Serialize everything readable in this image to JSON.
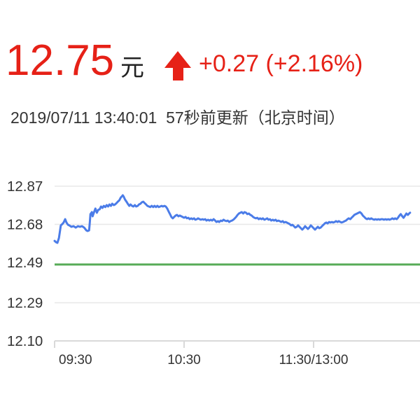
{
  "header": {
    "price": "12.75",
    "currency_label": "元",
    "change_text": "+0.27 (+2.16%)",
    "change_direction": "up",
    "arrow_icon": "up-arrow",
    "update_line": "2019/07/11 13:40:01  57秒前更新（北京时间）"
  },
  "colors": {
    "accent_red": "#e62117",
    "line_blue": "#4b7ce8",
    "prev_close_green": "#57ab57",
    "gridline_gray": "#e8e8e8",
    "axis_gray": "#d9d9d9",
    "text_dark": "#333333"
  },
  "chart_data": {
    "type": "line",
    "title": "",
    "xlabel": "",
    "ylabel": "",
    "grid": true,
    "legend_position": "none",
    "ylim": [
      12.1,
      12.87
    ],
    "y_ticks": [
      {
        "label": "12.87",
        "value": 12.87
      },
      {
        "label": "12.68",
        "value": 12.68
      },
      {
        "label": "12.49",
        "value": 12.49
      },
      {
        "label": "12.29",
        "value": 12.29
      },
      {
        "label": "12.10",
        "value": 12.1
      }
    ],
    "x_ticks": [
      {
        "label": "09:30",
        "minute": 0
      },
      {
        "label": "10:30",
        "minute": 60
      },
      {
        "label": "11:30/13:00",
        "minute": 120
      }
    ],
    "x_axis_note": "minutes of trading time since 09:30 (lunch break 11:30-13:00 collapsed)",
    "prev_close_value": 12.48,
    "series": [
      {
        "name": "intraday-price",
        "points": [
          [
            0,
            12.598
          ],
          [
            0.7,
            12.591
          ],
          [
            1.3,
            12.588
          ],
          [
            2,
            12.612
          ],
          [
            2.6,
            12.654
          ],
          [
            2.9,
            12.675
          ],
          [
            3.6,
            12.682
          ],
          [
            4.2,
            12.689
          ],
          [
            4.9,
            12.706
          ],
          [
            5.5,
            12.689
          ],
          [
            6.2,
            12.678
          ],
          [
            6.8,
            12.675
          ],
          [
            7.8,
            12.668
          ],
          [
            8.8,
            12.671
          ],
          [
            9.8,
            12.664
          ],
          [
            10.8,
            12.671
          ],
          [
            11.7,
            12.668
          ],
          [
            12.7,
            12.671
          ],
          [
            13.7,
            12.664
          ],
          [
            14.7,
            12.65
          ],
          [
            15.3,
            12.647
          ],
          [
            16,
            12.65
          ],
          [
            16.3,
            12.689
          ],
          [
            16.6,
            12.731
          ],
          [
            17.3,
            12.741
          ],
          [
            17.6,
            12.72
          ],
          [
            18.3,
            12.741
          ],
          [
            18.9,
            12.759
          ],
          [
            19.6,
            12.738
          ],
          [
            20.2,
            12.752
          ],
          [
            20.9,
            12.755
          ],
          [
            21.5,
            12.769
          ],
          [
            22.2,
            12.762
          ],
          [
            22.8,
            12.772
          ],
          [
            23.5,
            12.766
          ],
          [
            24.1,
            12.776
          ],
          [
            24.8,
            12.769
          ],
          [
            25.4,
            12.779
          ],
          [
            26.1,
            12.772
          ],
          [
            26.7,
            12.783
          ],
          [
            27.4,
            12.776
          ],
          [
            28,
            12.779
          ],
          [
            28.7,
            12.786
          ],
          [
            29.3,
            12.793
          ],
          [
            30,
            12.8
          ],
          [
            30.7,
            12.814
          ],
          [
            31.3,
            12.821
          ],
          [
            31.6,
            12.825
          ],
          [
            32,
            12.818
          ],
          [
            32.6,
            12.804
          ],
          [
            33.3,
            12.793
          ],
          [
            33.9,
            12.783
          ],
          [
            34.6,
            12.772
          ],
          [
            35.2,
            12.779
          ],
          [
            35.9,
            12.772
          ],
          [
            36.5,
            12.769
          ],
          [
            37.2,
            12.776
          ],
          [
            37.8,
            12.769
          ],
          [
            38.5,
            12.772
          ],
          [
            39.1,
            12.779
          ],
          [
            39.8,
            12.783
          ],
          [
            40.4,
            12.79
          ],
          [
            41.1,
            12.793
          ],
          [
            41.7,
            12.786
          ],
          [
            42.4,
            12.779
          ],
          [
            43,
            12.772
          ],
          [
            43.7,
            12.769
          ],
          [
            44.3,
            12.766
          ],
          [
            45,
            12.772
          ],
          [
            45.7,
            12.766
          ],
          [
            46.3,
            12.772
          ],
          [
            47,
            12.766
          ],
          [
            47.6,
            12.772
          ],
          [
            48.3,
            12.766
          ],
          [
            48.9,
            12.769
          ],
          [
            49.6,
            12.772
          ],
          [
            50.2,
            12.769
          ],
          [
            50.9,
            12.772
          ],
          [
            51.5,
            12.769
          ],
          [
            52.2,
            12.759
          ],
          [
            52.8,
            12.745
          ],
          [
            53.5,
            12.731
          ],
          [
            54.1,
            12.717
          ],
          [
            54.8,
            12.71
          ],
          [
            55.4,
            12.717
          ],
          [
            56.1,
            12.724
          ],
          [
            56.7,
            12.727
          ],
          [
            57.4,
            12.72
          ],
          [
            58,
            12.724
          ],
          [
            58.7,
            12.72
          ],
          [
            59.3,
            12.717
          ],
          [
            60,
            12.713
          ],
          [
            60.7,
            12.717
          ],
          [
            61.3,
            12.71
          ],
          [
            62,
            12.713
          ],
          [
            62.6,
            12.706
          ],
          [
            63.3,
            12.71
          ],
          [
            63.9,
            12.706
          ],
          [
            64.6,
            12.71
          ],
          [
            65.2,
            12.703
          ],
          [
            65.9,
            12.706
          ],
          [
            66.5,
            12.71
          ],
          [
            67.2,
            12.706
          ],
          [
            67.8,
            12.703
          ],
          [
            68.5,
            12.706
          ],
          [
            69.1,
            12.703
          ],
          [
            69.8,
            12.706
          ],
          [
            70.4,
            12.699
          ],
          [
            71.1,
            12.703
          ],
          [
            71.7,
            12.699
          ],
          [
            72.4,
            12.703
          ],
          [
            73,
            12.699
          ],
          [
            73.7,
            12.706
          ],
          [
            74.4,
            12.699
          ],
          [
            75,
            12.692
          ],
          [
            75.7,
            12.696
          ],
          [
            76.3,
            12.692
          ],
          [
            77,
            12.699
          ],
          [
            77.6,
            12.696
          ],
          [
            78.3,
            12.703
          ],
          [
            78.9,
            12.699
          ],
          [
            79.6,
            12.696
          ],
          [
            80.2,
            12.699
          ],
          [
            80.9,
            12.692
          ],
          [
            81.5,
            12.696
          ],
          [
            82.2,
            12.699
          ],
          [
            82.8,
            12.703
          ],
          [
            83.5,
            12.71
          ],
          [
            84.1,
            12.717
          ],
          [
            84.8,
            12.727
          ],
          [
            85.4,
            12.734
          ],
          [
            86.1,
            12.738
          ],
          [
            86.7,
            12.741
          ],
          [
            87.4,
            12.734
          ],
          [
            88,
            12.741
          ],
          [
            88.7,
            12.738
          ],
          [
            89.3,
            12.731
          ],
          [
            90,
            12.734
          ],
          [
            90.7,
            12.727
          ],
          [
            91.3,
            12.724
          ],
          [
            92,
            12.717
          ],
          [
            92.6,
            12.713
          ],
          [
            93.3,
            12.71
          ],
          [
            93.9,
            12.713
          ],
          [
            94.6,
            12.706
          ],
          [
            95.2,
            12.71
          ],
          [
            95.9,
            12.706
          ],
          [
            96.5,
            12.71
          ],
          [
            97.2,
            12.703
          ],
          [
            97.8,
            12.706
          ],
          [
            98.5,
            12.71
          ],
          [
            99.1,
            12.703
          ],
          [
            99.8,
            12.706
          ],
          [
            100.4,
            12.699
          ],
          [
            101.1,
            12.703
          ],
          [
            101.7,
            12.699
          ],
          [
            102.4,
            12.703
          ],
          [
            103,
            12.696
          ],
          [
            103.7,
            12.699
          ],
          [
            104.3,
            12.696
          ],
          [
            105,
            12.692
          ],
          [
            105.7,
            12.696
          ],
          [
            106.3,
            12.689
          ],
          [
            107,
            12.692
          ],
          [
            107.6,
            12.689
          ],
          [
            108.3,
            12.685
          ],
          [
            108.9,
            12.682
          ],
          [
            109.6,
            12.675
          ],
          [
            110.2,
            12.678
          ],
          [
            110.9,
            12.671
          ],
          [
            111.5,
            12.664
          ],
          [
            112.2,
            12.668
          ],
          [
            112.8,
            12.675
          ],
          [
            113.5,
            12.668
          ],
          [
            114.1,
            12.661
          ],
          [
            114.8,
            12.654
          ],
          [
            115.4,
            12.661
          ],
          [
            116.1,
            12.671
          ],
          [
            116.7,
            12.664
          ],
          [
            117.4,
            12.657
          ],
          [
            118,
            12.664
          ],
          [
            118.7,
            12.675
          ],
          [
            119.4,
            12.668
          ],
          [
            120,
            12.661
          ],
          [
            120.7,
            12.654
          ],
          [
            121.3,
            12.661
          ],
          [
            122,
            12.668
          ],
          [
            122.6,
            12.661
          ],
          [
            123.3,
            12.664
          ],
          [
            123.9,
            12.671
          ],
          [
            124.6,
            12.678
          ],
          [
            125.2,
            12.685
          ],
          [
            125.9,
            12.689
          ],
          [
            126.5,
            12.685
          ],
          [
            127.2,
            12.692
          ],
          [
            127.8,
            12.689
          ],
          [
            128.5,
            12.692
          ],
          [
            129.1,
            12.689
          ],
          [
            129.8,
            12.692
          ],
          [
            130.4,
            12.696
          ],
          [
            131.1,
            12.692
          ],
          [
            131.7,
            12.696
          ],
          [
            132.4,
            12.692
          ],
          [
            133,
            12.689
          ],
          [
            133.7,
            12.692
          ],
          [
            134.4,
            12.696
          ],
          [
            135,
            12.699
          ],
          [
            135.7,
            12.706
          ],
          [
            136.3,
            12.71
          ],
          [
            137,
            12.706
          ],
          [
            137.6,
            12.713
          ],
          [
            138.3,
            12.72
          ],
          [
            138.9,
            12.727
          ],
          [
            139.6,
            12.731
          ],
          [
            140.2,
            12.734
          ],
          [
            140.9,
            12.738
          ],
          [
            141.5,
            12.741
          ],
          [
            142.2,
            12.734
          ],
          [
            142.8,
            12.724
          ],
          [
            143.5,
            12.717
          ],
          [
            144.1,
            12.71
          ],
          [
            144.8,
            12.706
          ],
          [
            145.4,
            12.71
          ],
          [
            146.1,
            12.706
          ],
          [
            146.7,
            12.71
          ],
          [
            147.4,
            12.706
          ],
          [
            148.1,
            12.703
          ],
          [
            148.7,
            12.706
          ],
          [
            149.4,
            12.703
          ],
          [
            150,
            12.706
          ],
          [
            150.7,
            12.703
          ],
          [
            151.3,
            12.706
          ],
          [
            152,
            12.706
          ],
          [
            152.6,
            12.703
          ],
          [
            153.3,
            12.706
          ],
          [
            153.9,
            12.703
          ],
          [
            154.6,
            12.706
          ],
          [
            155.2,
            12.703
          ],
          [
            155.9,
            12.706
          ],
          [
            156.5,
            12.71
          ],
          [
            157.2,
            12.706
          ],
          [
            157.8,
            12.71
          ],
          [
            158.5,
            12.706
          ],
          [
            159.1,
            12.713
          ],
          [
            159.8,
            12.724
          ],
          [
            160.4,
            12.731
          ],
          [
            161.1,
            12.72
          ],
          [
            161.7,
            12.713
          ],
          [
            162.4,
            12.724
          ],
          [
            163,
            12.734
          ],
          [
            163.7,
            12.727
          ],
          [
            164.3,
            12.734
          ],
          [
            164.7,
            12.738
          ]
        ]
      }
    ]
  }
}
